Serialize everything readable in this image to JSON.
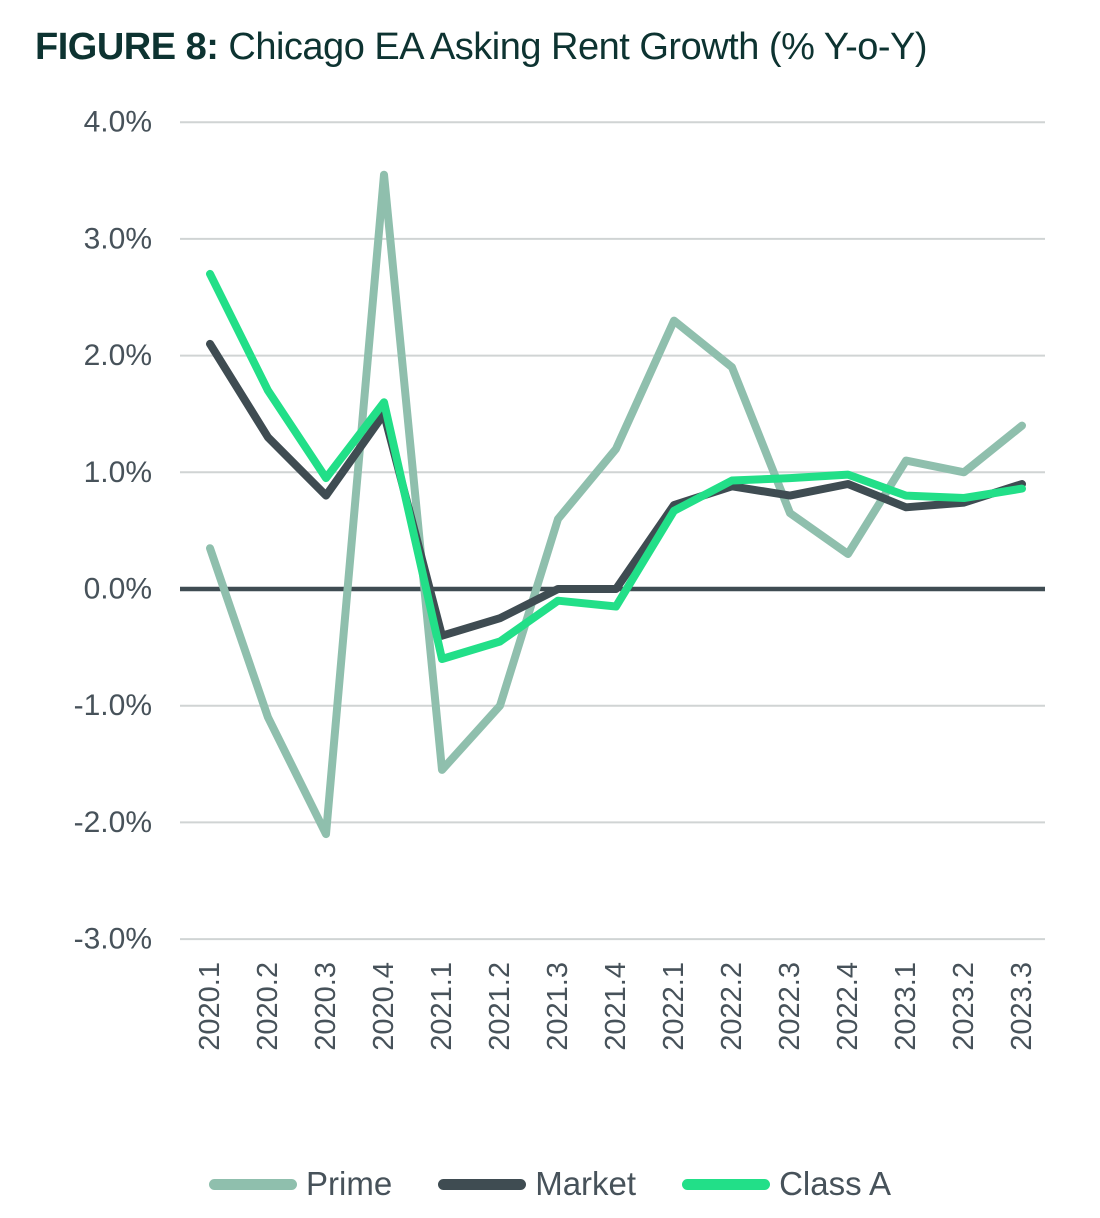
{
  "figure": {
    "label": "FIGURE 8:",
    "title": "Chicago EA Asking Rent Growth (% Y-o-Y)"
  },
  "chart_data": {
    "type": "line",
    "title": "Chicago EA Asking Rent Growth (% Y-o-Y)",
    "categories": [
      "2020.1",
      "2020.2",
      "2020.3",
      "2020.4",
      "2021.1",
      "2021.2",
      "2021.3",
      "2021.4",
      "2022.1",
      "2022.2",
      "2022.3",
      "2022.4",
      "2023.1",
      "2023.2",
      "2023.3"
    ],
    "series": [
      {
        "name": "Prime",
        "color": "#8fbfad",
        "values": [
          0.35,
          -1.1,
          -2.1,
          3.55,
          -1.55,
          -1.0,
          0.6,
          1.2,
          2.3,
          1.9,
          0.65,
          0.3,
          1.1,
          1.0,
          1.4
        ]
      },
      {
        "name": "Market",
        "color": "#3f4c52",
        "values": [
          2.1,
          1.3,
          0.8,
          1.5,
          -0.4,
          -0.25,
          0.0,
          0.0,
          0.72,
          0.88,
          0.8,
          0.9,
          0.7,
          0.74,
          0.9
        ]
      },
      {
        "name": "Class A",
        "color": "#22df88",
        "values": [
          2.7,
          1.7,
          0.95,
          1.6,
          -0.6,
          -0.45,
          -0.1,
          -0.15,
          0.67,
          0.93,
          0.95,
          0.98,
          0.8,
          0.78,
          0.86
        ]
      }
    ],
    "y_ticks": [
      "4.0%",
      "3.0%",
      "2.0%",
      "1.0%",
      "0.0%",
      "-1.0%",
      "-2.0%",
      "-3.0%"
    ],
    "ylim": [
      -3.0,
      4.0
    ],
    "xlabel": "",
    "ylabel": "",
    "grid": "horizontal",
    "zero_line": true,
    "legend_position": "bottom",
    "colors": {
      "grid": "#d0d4d4",
      "zero_line": "#3f4c52",
      "axis_text": "#47525a",
      "title_text": "#0d3331"
    }
  }
}
